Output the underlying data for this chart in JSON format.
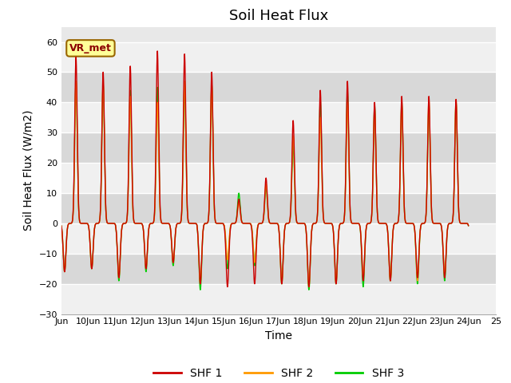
{
  "title": "Soil Heat Flux",
  "ylabel": "Soil Heat Flux (W/m2)",
  "xlabel": "Time",
  "xlim_days": [
    9,
    25
  ],
  "ylim": [
    -30,
    65
  ],
  "yticks": [
    -30,
    -20,
    -10,
    0,
    10,
    20,
    30,
    40,
    50,
    60
  ],
  "xtick_labels": [
    "Jun",
    "10Jun",
    "11Jun",
    "12Jun",
    "13Jun",
    "14Jun",
    "15Jun",
    "16Jun",
    "17Jun",
    "18Jun",
    "19Jun",
    "20Jun",
    "21Jun",
    "22Jun",
    "23Jun",
    "24Jun",
    "25"
  ],
  "xtick_positions": [
    9,
    10,
    11,
    12,
    13,
    14,
    15,
    16,
    17,
    18,
    19,
    20,
    21,
    22,
    23,
    24,
    25
  ],
  "colors": {
    "SHF1": "#cc0000",
    "SHF2": "#ff9900",
    "SHF3": "#00cc00"
  },
  "legend_labels": [
    "SHF 1",
    "SHF 2",
    "SHF 3"
  ],
  "bg_color": "#e8e8e8",
  "bg_light": "#f0f0f0",
  "bg_dark": "#d8d8d8",
  "annotation_text": "VR_met",
  "annotation_box_color": "#ffff99",
  "annotation_box_edge": "#996600",
  "grid_color": "#ffffff",
  "title_fontsize": 13,
  "label_fontsize": 10,
  "tick_fontsize": 8,
  "peaks_shf1": [
    55,
    50,
    52,
    57,
    56,
    50,
    8,
    15,
    34,
    44,
    47,
    40,
    42,
    42,
    41
  ],
  "peaks_shf2": [
    47,
    47,
    42,
    40,
    47,
    46,
    7,
    13,
    29,
    35,
    40,
    38,
    40,
    41,
    41
  ],
  "peaks_shf3": [
    47,
    46,
    44,
    45,
    46,
    46,
    10,
    12,
    26,
    41,
    44,
    39,
    40,
    39,
    40
  ],
  "troughs_shf1": [
    -16,
    -15,
    -18,
    -15,
    -13,
    -20,
    -21,
    -20,
    -20,
    -21,
    -20,
    -19,
    -19,
    -18,
    -18
  ],
  "troughs_shf2": [
    -16,
    -15,
    -18,
    -15,
    -13,
    -20,
    -12,
    -13,
    -20,
    -21,
    -20,
    -18,
    -19,
    -19,
    -17
  ],
  "troughs_shf3": [
    -16,
    -15,
    -19,
    -16,
    -14,
    -22,
    -15,
    -14,
    -20,
    -22,
    -20,
    -21,
    -19,
    -20,
    -19
  ]
}
